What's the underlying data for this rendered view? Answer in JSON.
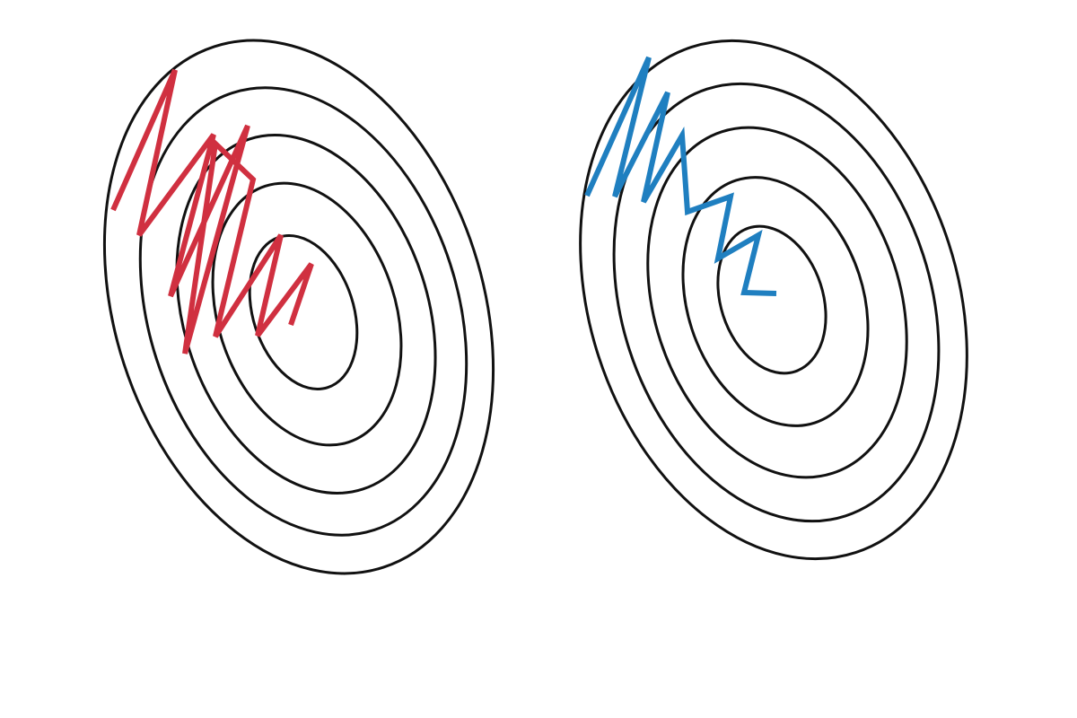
{
  "colors": {
    "background": "#ffffff",
    "contour": "#111111",
    "left_path": "#d03040",
    "right_path": "#1f7fc0"
  },
  "panels": [
    {
      "name": "left-contour-plot",
      "contour_count": 5,
      "path_color_key": "left_path",
      "path_kind": "large-oscillation-path"
    },
    {
      "name": "right-contour-plot",
      "contour_count": 5,
      "path_color_key": "right_path",
      "path_kind": "damped-oscillation-path"
    }
  ]
}
